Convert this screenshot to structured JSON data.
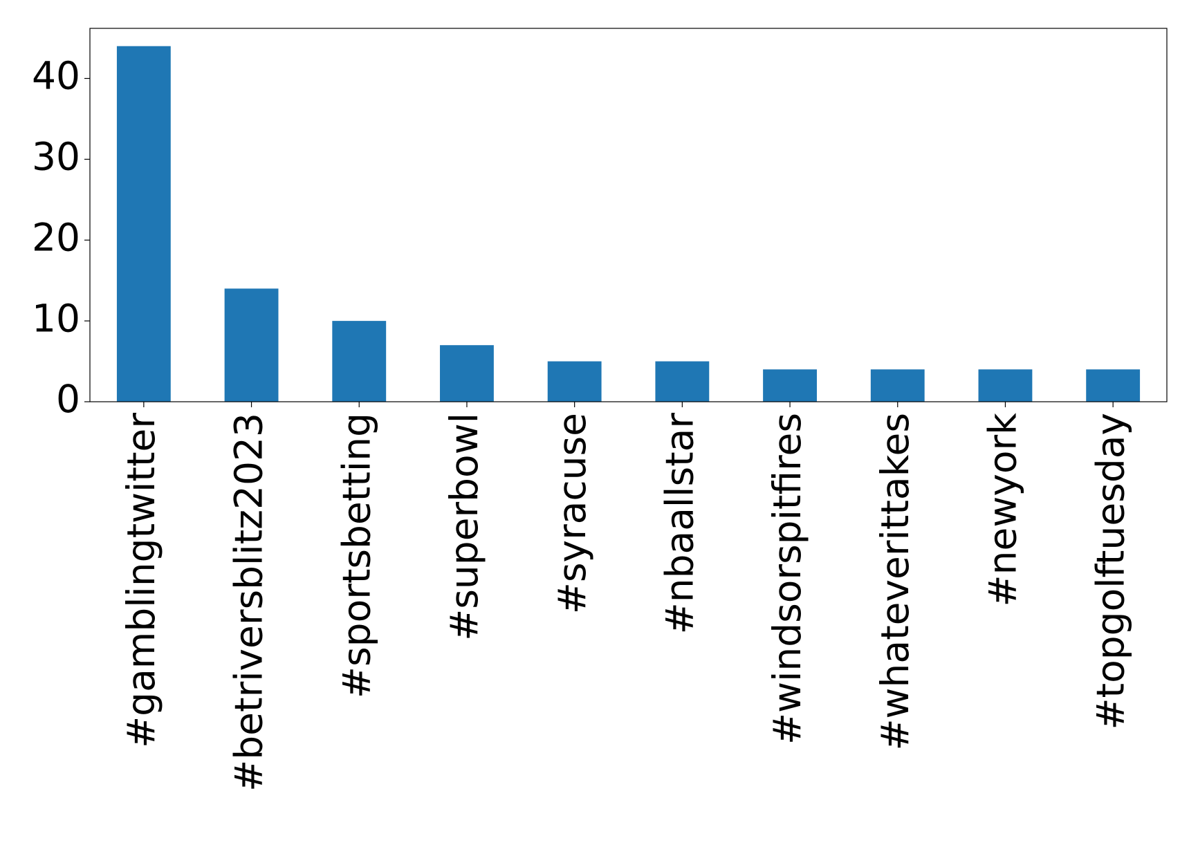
{
  "chart_data": {
    "type": "bar",
    "categories": [
      "#gamblingtwitter",
      "#betriversblitz2023",
      "#sportsbetting",
      "#superbowl",
      "#syracuse",
      "#nbaallstar",
      "#windsorspitfires",
      "#whateverittakes",
      "#newyork",
      "#topgolftuesday"
    ],
    "values": [
      44,
      14,
      10,
      7,
      5,
      5,
      4,
      4,
      4,
      4
    ],
    "color": "#1f77b4",
    "ylim": [
      0,
      46.2
    ],
    "yticks": [
      0,
      10,
      20,
      30,
      40
    ],
    "grid": false
  }
}
